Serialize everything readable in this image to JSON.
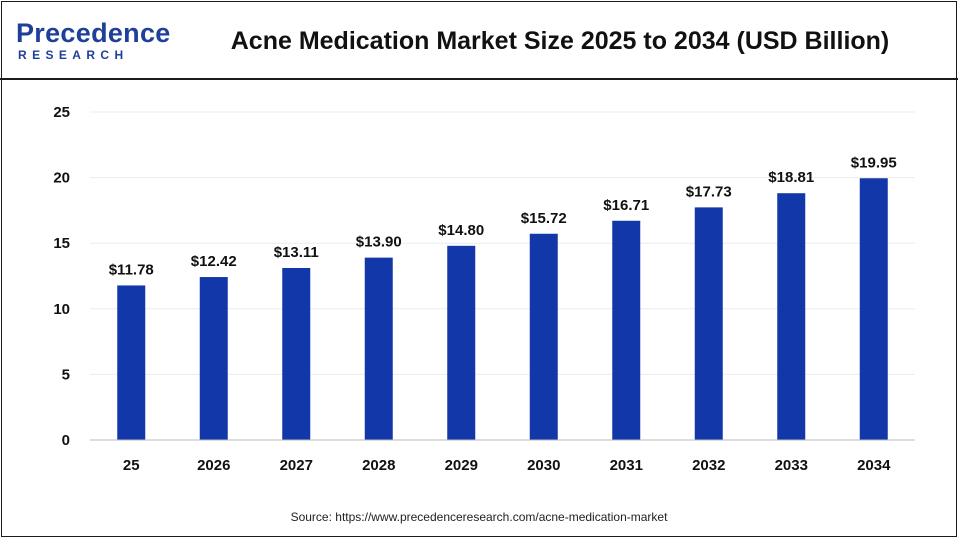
{
  "header": {
    "logo_main": "Precedence",
    "logo_sub": "RESEARCH",
    "title": "Acne Medication Market Size 2025 to 2034 (USD Billion)"
  },
  "footer": {
    "source": "Source: https://www.precedenceresearch.com/acne-medication-market"
  },
  "colors": {
    "bar": "#1237a8",
    "brand": "#1f3f9a"
  },
  "chart_data": {
    "type": "bar",
    "title": "Acne Medication Market Size 2025 to 2034 (USD Billion)",
    "categories": [
      "25",
      "2026",
      "2027",
      "2028",
      "2029",
      "2030",
      "2031",
      "2032",
      "2033",
      "2034"
    ],
    "values": [
      11.78,
      12.42,
      13.11,
      13.9,
      14.8,
      15.72,
      16.71,
      17.73,
      18.81,
      19.95
    ],
    "data_labels": [
      "$11.78",
      "$12.42",
      "$13.11",
      "$13.90",
      "$14.80",
      "$15.72",
      "$16.71",
      "$17.73",
      "$18.81",
      "$19.95"
    ],
    "yticks": [
      0,
      5,
      10,
      15,
      20,
      25
    ],
    "ylim": [
      0,
      25
    ],
    "xlabel": "",
    "ylabel": "",
    "grid": true,
    "legend": "none"
  }
}
